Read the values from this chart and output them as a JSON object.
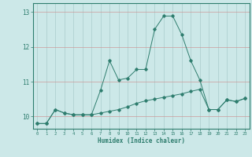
{
  "x": [
    0,
    1,
    2,
    3,
    4,
    5,
    6,
    7,
    8,
    9,
    10,
    11,
    12,
    13,
    14,
    15,
    16,
    17,
    18,
    19,
    20,
    21,
    22,
    23
  ],
  "line1": [
    9.8,
    9.8,
    10.2,
    10.1,
    10.05,
    10.05,
    10.05,
    10.1,
    10.15,
    10.2,
    10.28,
    10.38,
    10.45,
    10.5,
    10.55,
    10.6,
    10.65,
    10.72,
    10.78,
    10.2,
    10.2,
    10.48,
    10.43,
    10.52
  ],
  "line2": [
    9.8,
    9.8,
    10.2,
    10.1,
    10.05,
    10.05,
    10.05,
    10.75,
    11.6,
    11.05,
    11.1,
    11.35,
    11.35,
    12.5,
    12.88,
    12.88,
    12.35,
    11.6,
    11.05,
    10.2,
    10.2,
    10.48,
    10.43,
    10.52
  ],
  "bg_color": "#cce8e8",
  "line_color": "#2e7d6e",
  "grid_color_x": "#aacccc",
  "grid_color_y": "#cc9999",
  "xlabel": "Humidex (Indice chaleur)",
  "ylim": [
    9.65,
    13.25
  ],
  "xlim": [
    -0.5,
    23.5
  ]
}
